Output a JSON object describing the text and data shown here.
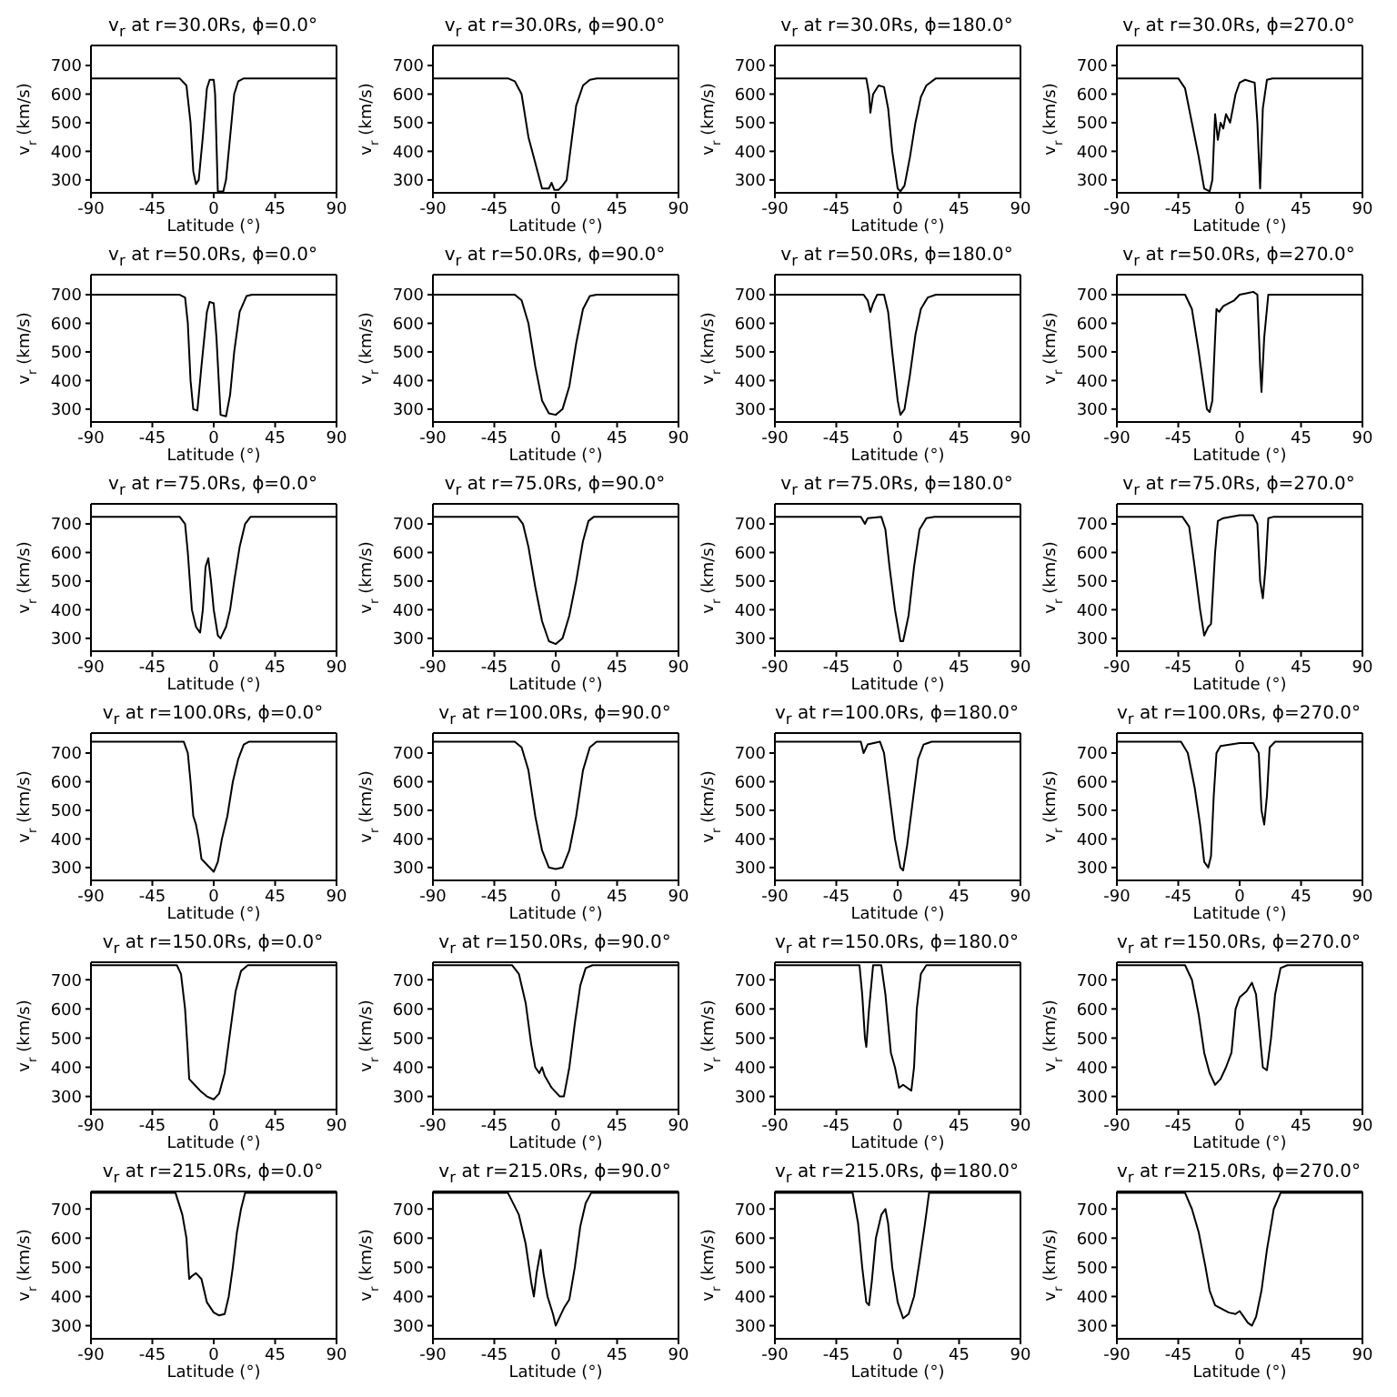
{
  "chart_data": [
    {
      "type": "line",
      "title": "v$_{r}$ at r=30.0Rs, ϕ=0.0°",
      "xlabel": "Latitude (°)",
      "ylabel": "v$_{r}$ (km/s)",
      "xlim": [
        -90,
        90
      ],
      "xticks": [
        -90,
        -45,
        0,
        45,
        90
      ],
      "ylim": [
        255,
        770
      ],
      "yticks": [
        300,
        400,
        500,
        600,
        700
      ],
      "series": [
        {
          "color": "#000000",
          "x": [
            -90,
            -25,
            -20,
            -17,
            -15,
            -13,
            -11,
            -8,
            -5,
            -3,
            0,
            1,
            3,
            7,
            9,
            12,
            15,
            18,
            22,
            90
          ],
          "values": [
            655,
            655,
            630,
            500,
            330,
            285,
            300,
            450,
            620,
            650,
            650,
            600,
            260,
            260,
            300,
            450,
            600,
            645,
            655,
            655
          ]
        }
      ]
    },
    {
      "type": "line",
      "title": "v$_{r}$ at r=30.0Rs, ϕ=90.0°",
      "xlabel": "Latitude (°)",
      "ylabel": "v$_{r}$ (km/s)",
      "xlim": [
        -90,
        90
      ],
      "xticks": [
        -90,
        -45,
        0,
        45,
        90
      ],
      "ylim": [
        255,
        770
      ],
      "yticks": [
        300,
        400,
        500,
        600,
        700
      ],
      "series": [
        {
          "color": "#000000",
          "x": [
            -90,
            -35,
            -30,
            -25,
            -20,
            -15,
            -10,
            -5,
            -3,
            -1,
            2,
            5,
            8,
            12,
            15,
            20,
            25,
            30,
            90
          ],
          "values": [
            655,
            655,
            645,
            600,
            450,
            360,
            270,
            270,
            290,
            265,
            265,
            280,
            300,
            450,
            560,
            630,
            650,
            655,
            655
          ]
        }
      ]
    },
    {
      "type": "line",
      "title": "v$_{r}$ at r=30.0Rs, ϕ=180.0°",
      "xlabel": "Latitude (°)",
      "ylabel": "v$_{r}$ (km/s)",
      "xlim": [
        -90,
        90
      ],
      "xticks": [
        -90,
        -45,
        0,
        45,
        90
      ],
      "ylim": [
        255,
        770
      ],
      "yticks": [
        300,
        400,
        500,
        600,
        700
      ],
      "series": [
        {
          "color": "#000000",
          "x": [
            -90,
            -23,
            -21,
            -20,
            -18,
            -14,
            -10,
            -7,
            -4,
            0,
            2,
            5,
            9,
            13,
            17,
            21,
            28,
            90
          ],
          "values": [
            655,
            655,
            600,
            535,
            600,
            630,
            625,
            550,
            400,
            270,
            260,
            280,
            380,
            500,
            590,
            630,
            655,
            655
          ]
        }
      ]
    },
    {
      "type": "line",
      "title": "v$_{r}$ at r=30.0Rs, ϕ=270.0°",
      "xlabel": "Latitude (°)",
      "ylabel": "v$_{r}$ (km/s)",
      "xlim": [
        -90,
        90
      ],
      "xticks": [
        -90,
        -45,
        0,
        45,
        90
      ],
      "ylim": [
        255,
        770
      ],
      "yticks": [
        300,
        400,
        500,
        600,
        700
      ],
      "series": [
        {
          "color": "#000000",
          "x": [
            -90,
            -45,
            -40,
            -35,
            -30,
            -26,
            -22,
            -20,
            -18,
            -16,
            -14,
            -12,
            -10,
            -7,
            -3,
            0,
            4,
            11,
            13,
            15,
            17,
            20,
            24,
            90
          ],
          "values": [
            655,
            655,
            620,
            500,
            380,
            270,
            260,
            300,
            530,
            440,
            500,
            480,
            530,
            500,
            600,
            640,
            650,
            640,
            500,
            270,
            550,
            650,
            655,
            655
          ]
        }
      ]
    },
    {
      "type": "line",
      "title": "v$_{r}$ at r=50.0Rs, ϕ=0.0°",
      "xlabel": "Latitude (°)",
      "ylabel": "v$_{r}$ (km/s)",
      "xlim": [
        -90,
        90
      ],
      "xticks": [
        -90,
        -45,
        0,
        45,
        90
      ],
      "ylim": [
        255,
        770
      ],
      "yticks": [
        300,
        400,
        500,
        600,
        700
      ],
      "series": [
        {
          "color": "#000000",
          "x": [
            -90,
            -25,
            -21,
            -19,
            -17,
            -15,
            -12,
            -9,
            -5,
            -3,
            0,
            2,
            5,
            9,
            12,
            15,
            19,
            24,
            28,
            90
          ],
          "values": [
            700,
            700,
            690,
            600,
            400,
            300,
            295,
            450,
            640,
            675,
            670,
            550,
            280,
            275,
            350,
            500,
            640,
            695,
            700,
            700
          ]
        }
      ]
    },
    {
      "type": "line",
      "title": "v$_{r}$ at r=50.0Rs, ϕ=90.0°",
      "xlabel": "Latitude (°)",
      "ylabel": "v$_{r}$ (km/s)",
      "xlim": [
        -90,
        90
      ],
      "xticks": [
        -90,
        -45,
        0,
        45,
        90
      ],
      "ylim": [
        255,
        770
      ],
      "yticks": [
        300,
        400,
        500,
        600,
        700
      ],
      "series": [
        {
          "color": "#000000",
          "x": [
            -90,
            -30,
            -25,
            -20,
            -15,
            -10,
            -5,
            0,
            5,
            10,
            15,
            20,
            25,
            30,
            90
          ],
          "values": [
            700,
            700,
            680,
            600,
            450,
            330,
            285,
            280,
            300,
            380,
            530,
            650,
            695,
            700,
            700
          ]
        }
      ]
    },
    {
      "type": "line",
      "title": "v$_{r}$ at r=50.0Rs, ϕ=180.0°",
      "xlabel": "Latitude (°)",
      "ylabel": "v$_{r}$ (km/s)",
      "xlim": [
        -90,
        90
      ],
      "xticks": [
        -90,
        -45,
        0,
        45,
        90
      ],
      "ylim": [
        255,
        770
      ],
      "yticks": [
        300,
        400,
        500,
        600,
        700
      ],
      "series": [
        {
          "color": "#000000",
          "x": [
            -90,
            -25,
            -22,
            -20,
            -18,
            -15,
            -10,
            -7,
            -4,
            0,
            2,
            5,
            9,
            13,
            17,
            22,
            28,
            90
          ],
          "values": [
            700,
            700,
            680,
            640,
            670,
            700,
            700,
            640,
            500,
            330,
            280,
            300,
            420,
            560,
            650,
            690,
            700,
            700
          ]
        }
      ]
    },
    {
      "type": "line",
      "title": "v$_{r}$ at r=50.0Rs, ϕ=270.0°",
      "xlabel": "Latitude (°)",
      "ylabel": "v$_{r}$ (km/s)",
      "xlim": [
        -90,
        90
      ],
      "xticks": [
        -90,
        -45,
        0,
        45,
        90
      ],
      "ylim": [
        255,
        770
      ],
      "yticks": [
        300,
        400,
        500,
        600,
        700
      ],
      "series": [
        {
          "color": "#000000",
          "x": [
            -90,
            -40,
            -35,
            -30,
            -27,
            -24,
            -22,
            -20,
            -18,
            -17,
            -15,
            -12,
            -8,
            -4,
            0,
            5,
            10,
            13,
            15,
            16,
            18,
            21,
            25,
            90
          ],
          "values": [
            700,
            700,
            650,
            500,
            400,
            300,
            290,
            330,
            550,
            650,
            640,
            660,
            670,
            680,
            700,
            705,
            710,
            700,
            450,
            360,
            550,
            700,
            700,
            700
          ]
        }
      ]
    },
    {
      "type": "line",
      "title": "v$_{r}$ at r=75.0Rs, ϕ=0.0°",
      "xlabel": "Latitude (°)",
      "ylabel": "v$_{r}$ (km/s)",
      "xlim": [
        -90,
        90
      ],
      "xticks": [
        -90,
        -45,
        0,
        45,
        90
      ],
      "ylim": [
        255,
        770
      ],
      "yticks": [
        300,
        400,
        500,
        600,
        700
      ],
      "series": [
        {
          "color": "#000000",
          "x": [
            -90,
            -25,
            -21,
            -19,
            -16,
            -13,
            -10,
            -8,
            -6,
            -4,
            -2,
            0,
            3,
            5,
            9,
            12,
            15,
            19,
            23,
            27,
            90
          ],
          "values": [
            725,
            725,
            700,
            600,
            400,
            340,
            320,
            400,
            550,
            580,
            500,
            400,
            310,
            300,
            340,
            400,
            500,
            620,
            700,
            725,
            725
          ]
        }
      ]
    },
    {
      "type": "line",
      "title": "v$_{r}$ at r=75.0Rs, ϕ=90.0°",
      "xlabel": "Latitude (°)",
      "ylabel": "v$_{r}$ (km/s)",
      "xlim": [
        -90,
        90
      ],
      "xticks": [
        -90,
        -45,
        0,
        45,
        90
      ],
      "ylim": [
        255,
        770
      ],
      "yticks": [
        300,
        400,
        500,
        600,
        700
      ],
      "series": [
        {
          "color": "#000000",
          "x": [
            -90,
            -28,
            -24,
            -20,
            -15,
            -10,
            -5,
            0,
            5,
            10,
            15,
            20,
            24,
            28,
            90
          ],
          "values": [
            725,
            725,
            700,
            620,
            480,
            360,
            290,
            280,
            300,
            380,
            500,
            640,
            710,
            725,
            725
          ]
        }
      ]
    },
    {
      "type": "line",
      "title": "v$_{r}$ at r=75.0Rs, ϕ=180.0°",
      "xlabel": "Latitude (°)",
      "ylabel": "v$_{r}$ (km/s)",
      "xlim": [
        -90,
        90
      ],
      "xticks": [
        -90,
        -45,
        0,
        45,
        90
      ],
      "ylim": [
        255,
        770
      ],
      "yticks": [
        300,
        400,
        500,
        600,
        700
      ],
      "series": [
        {
          "color": "#000000",
          "x": [
            -90,
            -27,
            -24,
            -22,
            -12,
            -9,
            -6,
            -2,
            2,
            4,
            8,
            12,
            16,
            21,
            27,
            90
          ],
          "values": [
            725,
            725,
            700,
            720,
            725,
            680,
            550,
            400,
            290,
            290,
            380,
            550,
            680,
            720,
            725,
            725
          ]
        }
      ]
    },
    {
      "type": "line",
      "title": "v$_{r}$ at r=75.0Rs, ϕ=270.0°",
      "xlabel": "Latitude (°)",
      "ylabel": "v$_{r}$ (km/s)",
      "xlim": [
        -90,
        90
      ],
      "xticks": [
        -90,
        -45,
        0,
        45,
        90
      ],
      "ylim": [
        255,
        770
      ],
      "yticks": [
        300,
        400,
        500,
        600,
        700
      ],
      "series": [
        {
          "color": "#000000",
          "x": [
            -90,
            -42,
            -37,
            -33,
            -29,
            -26,
            -23,
            -21,
            -18,
            -16,
            -12,
            0,
            10,
            13,
            15,
            17,
            19,
            21,
            25,
            90
          ],
          "values": [
            725,
            725,
            690,
            550,
            400,
            310,
            340,
            350,
            600,
            710,
            720,
            730,
            730,
            700,
            500,
            440,
            550,
            720,
            725,
            725
          ]
        }
      ]
    },
    {
      "type": "line",
      "title": "v$_{r}$ at r=100.0Rs, ϕ=0.0°",
      "xlabel": "Latitude (°)",
      "ylabel": "v$_{r}$ (km/s)",
      "xlim": [
        -90,
        90
      ],
      "xticks": [
        -90,
        -45,
        0,
        45,
        90
      ],
      "ylim": [
        255,
        770
      ],
      "yticks": [
        300,
        400,
        500,
        600,
        700
      ],
      "series": [
        {
          "color": "#000000",
          "x": [
            -90,
            -22,
            -19,
            -17,
            -15,
            -13,
            -11,
            -9,
            -5,
            0,
            3,
            6,
            10,
            14,
            18,
            22,
            26,
            90
          ],
          "values": [
            740,
            740,
            700,
            600,
            480,
            450,
            400,
            330,
            310,
            285,
            320,
            400,
            480,
            600,
            680,
            730,
            740,
            740
          ]
        }
      ]
    },
    {
      "type": "line",
      "title": "v$_{r}$ at r=100.0Rs, ϕ=90.0°",
      "xlabel": "Latitude (°)",
      "ylabel": "v$_{r}$ (km/s)",
      "xlim": [
        -90,
        90
      ],
      "xticks": [
        -90,
        -45,
        0,
        45,
        90
      ],
      "ylim": [
        255,
        770
      ],
      "yticks": [
        300,
        400,
        500,
        600,
        700
      ],
      "series": [
        {
          "color": "#000000",
          "x": [
            -90,
            -30,
            -25,
            -20,
            -15,
            -10,
            -5,
            0,
            5,
            10,
            15,
            20,
            25,
            30,
            90
          ],
          "values": [
            740,
            740,
            720,
            640,
            480,
            360,
            300,
            295,
            300,
            360,
            480,
            640,
            720,
            740,
            740
          ]
        }
      ]
    },
    {
      "type": "line",
      "title": "v$_{r}$ at r=100.0Rs, ϕ=180.0°",
      "xlabel": "Latitude (°)",
      "ylabel": "v$_{r}$ (km/s)",
      "xlim": [
        -90,
        90
      ],
      "xticks": [
        -90,
        -45,
        0,
        45,
        90
      ],
      "ylim": [
        255,
        770
      ],
      "yticks": [
        300,
        400,
        500,
        600,
        700
      ],
      "series": [
        {
          "color": "#000000",
          "x": [
            -90,
            -27,
            -25,
            -22,
            -13,
            -10,
            -6,
            -2,
            2,
            4,
            7,
            11,
            15,
            19,
            25,
            90
          ],
          "values": [
            740,
            740,
            700,
            730,
            740,
            700,
            550,
            400,
            300,
            290,
            380,
            530,
            680,
            730,
            740,
            740
          ]
        }
      ]
    },
    {
      "type": "line",
      "title": "v$_{r}$ at r=100.0Rs, ϕ=270.0°",
      "xlabel": "Latitude (°)",
      "ylabel": "v$_{r}$ (km/s)",
      "xlim": [
        -90,
        90
      ],
      "xticks": [
        -90,
        -45,
        0,
        45,
        90
      ],
      "ylim": [
        255,
        770
      ],
      "yticks": [
        300,
        400,
        500,
        600,
        700
      ],
      "series": [
        {
          "color": "#000000",
          "x": [
            -90,
            -43,
            -38,
            -33,
            -29,
            -26,
            -23,
            -21,
            -19,
            -17,
            -14,
            0,
            10,
            14,
            16,
            18,
            20,
            22,
            26,
            90
          ],
          "values": [
            740,
            740,
            700,
            580,
            450,
            320,
            300,
            340,
            550,
            700,
            725,
            735,
            735,
            700,
            500,
            450,
            550,
            720,
            740,
            740
          ]
        }
      ]
    },
    {
      "type": "line",
      "title": "v$_{r}$ at r=150.0Rs, ϕ=0.0°",
      "xlabel": "Latitude (°)",
      "ylabel": "v$_{r}$ (km/s)",
      "xlim": [
        -90,
        90
      ],
      "xticks": [
        -90,
        -45,
        0,
        45,
        90
      ],
      "ylim": [
        255,
        760
      ],
      "yticks": [
        300,
        400,
        500,
        600,
        700
      ],
      "series": [
        {
          "color": "#000000",
          "x": [
            -90,
            -27,
            -24,
            -21,
            -19,
            -18,
            -14,
            -10,
            -5,
            0,
            4,
            8,
            12,
            16,
            20,
            25,
            90
          ],
          "values": [
            750,
            750,
            720,
            600,
            450,
            360,
            340,
            320,
            300,
            290,
            310,
            380,
            520,
            660,
            730,
            750,
            750
          ]
        }
      ]
    },
    {
      "type": "line",
      "title": "v$_{r}$ at r=150.0Rs, ϕ=90.0°",
      "xlabel": "Latitude (°)",
      "ylabel": "v$_{r}$ (km/s)",
      "xlim": [
        -90,
        90
      ],
      "xticks": [
        -90,
        -45,
        0,
        45,
        90
      ],
      "ylim": [
        255,
        760
      ],
      "yticks": [
        300,
        400,
        500,
        600,
        700
      ],
      "series": [
        {
          "color": "#000000",
          "x": [
            -90,
            -32,
            -27,
            -22,
            -18,
            -15,
            -12,
            -10,
            -8,
            -3,
            3,
            6,
            10,
            14,
            18,
            22,
            27,
            90
          ],
          "values": [
            750,
            750,
            720,
            620,
            480,
            400,
            380,
            400,
            370,
            330,
            300,
            300,
            400,
            550,
            680,
            740,
            750,
            750
          ]
        }
      ]
    },
    {
      "type": "line",
      "title": "v$_{r}$ at r=150.0Rs, ϕ=180.0°",
      "xlabel": "Latitude (°)",
      "ylabel": "v$_{r}$ (km/s)",
      "xlim": [
        -90,
        90
      ],
      "xticks": [
        -90,
        -45,
        0,
        45,
        90
      ],
      "ylim": [
        255,
        760
      ],
      "yticks": [
        300,
        400,
        500,
        600,
        700
      ],
      "series": [
        {
          "color": "#000000",
          "x": [
            -90,
            -28,
            -26,
            -24,
            -23,
            -21,
            -18,
            -12,
            -9,
            -5,
            -2,
            1,
            4,
            7,
            10,
            12,
            14,
            17,
            21,
            90
          ],
          "values": [
            750,
            750,
            650,
            500,
            470,
            600,
            750,
            750,
            650,
            450,
            400,
            330,
            340,
            330,
            320,
            400,
            600,
            720,
            750,
            750
          ]
        }
      ]
    },
    {
      "type": "line",
      "title": "v$_{r}$ at r=150.0Rs, ϕ=270.0°",
      "xlabel": "Latitude (°)",
      "ylabel": "v$_{r}$ (km/s)",
      "xlim": [
        -90,
        90
      ],
      "xticks": [
        -90,
        -45,
        0,
        45,
        90
      ],
      "ylim": [
        255,
        760
      ],
      "yticks": [
        300,
        400,
        500,
        600,
        700
      ],
      "series": [
        {
          "color": "#000000",
          "x": [
            -90,
            -40,
            -35,
            -30,
            -26,
            -22,
            -18,
            -14,
            -10,
            -6,
            -3,
            0,
            5,
            9,
            12,
            15,
            17,
            20,
            23,
            26,
            30,
            35,
            90
          ],
          "values": [
            750,
            750,
            700,
            580,
            450,
            380,
            340,
            360,
            400,
            450,
            600,
            640,
            660,
            690,
            650,
            500,
            400,
            390,
            500,
            650,
            740,
            750,
            750
          ]
        }
      ]
    },
    {
      "type": "line",
      "title": "v$_{r}$ at r=215.0Rs, ϕ=0.0°",
      "xlabel": "Latitude (°)",
      "ylabel": "v$_{r}$ (km/s)",
      "xlim": [
        -90,
        90
      ],
      "xticks": [
        -90,
        -45,
        0,
        45,
        90
      ],
      "ylim": [
        255,
        760
      ],
      "yticks": [
        300,
        400,
        500,
        600,
        700
      ],
      "series": [
        {
          "color": "#000000",
          "x": [
            -90,
            -28,
            -23,
            -20,
            -18,
            -16,
            -13,
            -9,
            -5,
            0,
            4,
            8,
            11,
            14,
            17,
            20,
            23,
            90
          ],
          "values": [
            755,
            755,
            680,
            600,
            460,
            470,
            480,
            460,
            380,
            345,
            335,
            340,
            400,
            500,
            620,
            700,
            755,
            755
          ]
        }
      ]
    },
    {
      "type": "line",
      "title": "v$_{r}$ at r=215.0Rs, ϕ=90.0°",
      "xlabel": "Latitude (°)",
      "ylabel": "v$_{r}$ (km/s)",
      "xlim": [
        -90,
        90
      ],
      "xticks": [
        -90,
        -45,
        0,
        45,
        90
      ],
      "ylim": [
        255,
        760
      ],
      "yticks": [
        300,
        400,
        500,
        600,
        700
      ],
      "series": [
        {
          "color": "#000000",
          "x": [
            -90,
            -35,
            -27,
            -22,
            -18,
            -16,
            -14,
            -11,
            -9,
            -6,
            -2,
            0,
            3,
            6,
            10,
            14,
            18,
            22,
            26,
            90
          ],
          "values": [
            755,
            755,
            680,
            580,
            450,
            400,
            480,
            560,
            480,
            400,
            340,
            300,
            330,
            360,
            390,
            500,
            640,
            720,
            755,
            755
          ]
        }
      ]
    },
    {
      "type": "line",
      "title": "v$_{r}$ at r=215.0Rs, ϕ=180.0°",
      "xlabel": "Latitude (°)",
      "ylabel": "v$_{r}$ (km/s)",
      "xlim": [
        -90,
        90
      ],
      "xticks": [
        -90,
        -45,
        0,
        45,
        90
      ],
      "ylim": [
        255,
        760
      ],
      "yticks": [
        300,
        400,
        500,
        600,
        700
      ],
      "series": [
        {
          "color": "#000000",
          "x": [
            -90,
            -33,
            -29,
            -26,
            -23,
            -21,
            -19,
            -16,
            -12,
            -9,
            -7,
            -4,
            0,
            4,
            8,
            12,
            16,
            20,
            23,
            90
          ],
          "values": [
            755,
            755,
            650,
            500,
            380,
            370,
            450,
            600,
            680,
            700,
            650,
            500,
            380,
            325,
            340,
            400,
            520,
            650,
            755,
            755
          ]
        }
      ]
    },
    {
      "type": "line",
      "title": "v$_{r}$ at r=215.0Rs, ϕ=270.0°",
      "xlabel": "Latitude (°)",
      "ylabel": "v$_{r}$ (km/s)",
      "xlim": [
        -90,
        90
      ],
      "xticks": [
        -90,
        -45,
        0,
        45,
        90
      ],
      "ylim": [
        255,
        760
      ],
      "yticks": [
        300,
        400,
        500,
        600,
        700
      ],
      "series": [
        {
          "color": "#000000",
          "x": [
            -90,
            -40,
            -35,
            -30,
            -25,
            -22,
            -18,
            -14,
            -8,
            -3,
            0,
            3,
            6,
            9,
            12,
            16,
            20,
            25,
            30,
            90
          ],
          "values": [
            755,
            755,
            700,
            620,
            500,
            420,
            370,
            360,
            345,
            340,
            350,
            330,
            310,
            300,
            330,
            420,
            560,
            700,
            755,
            755
          ]
        }
      ]
    }
  ]
}
